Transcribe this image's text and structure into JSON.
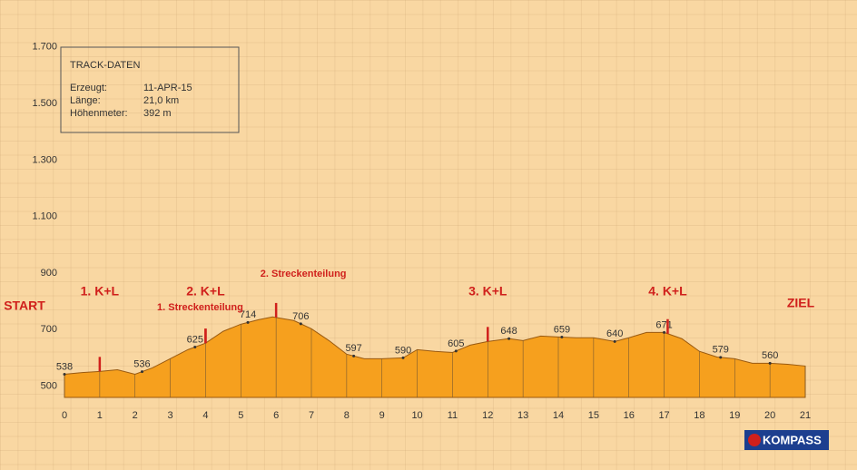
{
  "chart_data": {
    "type": "area",
    "color": "#f6a01e",
    "line_color": "#9a5a10",
    "marker_color": "#d0201c",
    "x": [
      0,
      0.5,
      1,
      1.5,
      2,
      2.5,
      3,
      3.5,
      4,
      4.5,
      5,
      5.5,
      5.9,
      6.5,
      7,
      7.5,
      8,
      8.5,
      9,
      9.6,
      10,
      10.5,
      11,
      11.5,
      12,
      12.6,
      13,
      13.5,
      14,
      14.5,
      15,
      15.6,
      16,
      16.5,
      17,
      17.5,
      18,
      18.5,
      19,
      19.5,
      20,
      20.5,
      21
    ],
    "values": [
      542,
      548,
      552,
      558,
      542,
      565,
      597,
      629,
      652,
      694,
      719,
      735,
      745,
      732,
      703,
      661,
      613,
      597,
      597,
      600,
      629,
      623,
      619,
      645,
      658,
      668,
      661,
      677,
      674,
      671,
      671,
      658,
      671,
      690,
      690,
      668,
      623,
      603,
      597,
      581,
      581,
      577,
      571
    ],
    "xlim": [
      0,
      21
    ],
    "ylim": [
      460,
      1770
    ],
    "xticks": [
      0,
      1,
      2,
      3,
      4,
      5,
      6,
      7,
      8,
      9,
      10,
      11,
      12,
      13,
      14,
      15,
      16,
      17,
      18,
      19,
      20,
      21
    ],
    "yticks": [
      500,
      700,
      900,
      {
        "value": 1100,
        "label": "1.100"
      },
      {
        "value": 1300,
        "label": "1.300"
      },
      {
        "value": 1500,
        "label": "1.500"
      },
      {
        "value": 1700,
        "label": "1.700"
      }
    ],
    "spot_heights": {
      "x": [
        0,
        2.2,
        3.7,
        5.2,
        6.7,
        8.2,
        9.6,
        11.1,
        12.6,
        14.1,
        15.6,
        17.0,
        18.6,
        20.0
      ],
      "values": [
        538,
        536,
        625,
        714,
        706,
        597,
        590,
        605,
        648,
        659,
        640,
        671,
        579,
        560
      ]
    },
    "checkpoints": {
      "x": [
        1,
        4,
        12,
        17.1
      ],
      "labels": [
        "1. K+L",
        "2. K+L",
        "3. K+L",
        "4. K+L"
      ]
    },
    "splits": {
      "x": [
        4,
        6
      ],
      "labels": [
        "1. Streckenteilung",
        "2. Streckenteilung"
      ]
    },
    "start_label": "START",
    "finish_label": "ZIEL"
  },
  "track_box": {
    "title": "TRACK-DATEN",
    "rows": [
      [
        "Erzeugt:",
        "11-APR-15"
      ],
      [
        "Länge:",
        "21,0 km"
      ],
      [
        "Höhenmeter:",
        "392 m"
      ]
    ]
  },
  "logo": "KOMPASS"
}
